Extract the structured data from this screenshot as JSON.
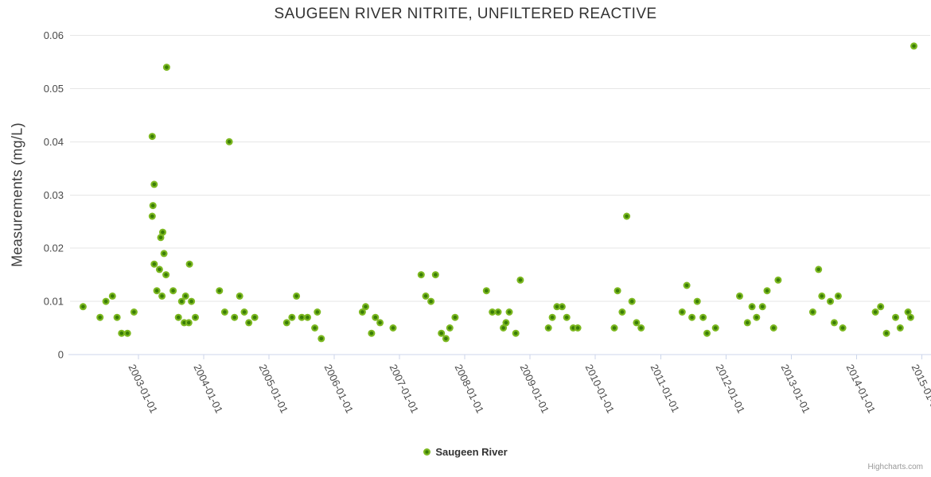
{
  "chart_data": {
    "type": "scatter",
    "title": "SAUGEEN RIVER NITRITE, UNFILTERED REACTIVE",
    "xlabel": "",
    "ylabel": "Measurements (mg/L)",
    "credits": "Highcharts.com",
    "ylim": [
      0,
      0.06
    ],
    "xlim": [
      2001.95,
      2015.13
    ],
    "grid": "horizontal-only",
    "legend_position": "bottom-center",
    "yticks": [
      0,
      0.01,
      0.02,
      0.03,
      0.04,
      0.05,
      0.06
    ],
    "ytick_labels": [
      "0",
      "0.01",
      "0.02",
      "0.03",
      "0.04",
      "0.05",
      "0.06"
    ],
    "xticks": [
      2003,
      2004,
      2005,
      2006,
      2007,
      2008,
      2009,
      2010,
      2011,
      2012,
      2013,
      2014,
      2015
    ],
    "xtick_labels": [
      "2003-01-01",
      "2004-01-01",
      "2005-01-01",
      "2006-01-01",
      "2007-01-01",
      "2008-01-01",
      "2009-01-01",
      "2010-01-01",
      "2011-01-01",
      "2012-01-01",
      "2013-01-01",
      "2014-01-01",
      "2015-01-01"
    ],
    "colors": {
      "marker_outer": "#7cb820",
      "marker_inner": "#3a7d07",
      "gridline": "#e6e6e6",
      "axis_line": "#ccd6eb",
      "tick_label": "#4a4a4a",
      "title": "#333333"
    },
    "series": [
      {
        "name": "Saugeen River",
        "points": [
          [
            2002.15,
            0.009
          ],
          [
            2002.41,
            0.007
          ],
          [
            2002.5,
            0.01
          ],
          [
            2002.6,
            0.011
          ],
          [
            2002.67,
            0.007
          ],
          [
            2002.74,
            0.004
          ],
          [
            2002.83,
            0.004
          ],
          [
            2002.93,
            0.008
          ],
          [
            2003.21,
            0.041
          ],
          [
            2003.21,
            0.026
          ],
          [
            2003.22,
            0.028
          ],
          [
            2003.24,
            0.032
          ],
          [
            2003.24,
            0.017
          ],
          [
            2003.28,
            0.012
          ],
          [
            2003.32,
            0.016
          ],
          [
            2003.34,
            0.022
          ],
          [
            2003.36,
            0.011
          ],
          [
            2003.37,
            0.023
          ],
          [
            2003.39,
            0.019
          ],
          [
            2003.42,
            0.015
          ],
          [
            2003.43,
            0.054
          ],
          [
            2003.53,
            0.012
          ],
          [
            2003.61,
            0.007
          ],
          [
            2003.66,
            0.01
          ],
          [
            2003.7,
            0.006
          ],
          [
            2003.72,
            0.011
          ],
          [
            2003.77,
            0.006
          ],
          [
            2003.78,
            0.017
          ],
          [
            2003.81,
            0.01
          ],
          [
            2003.87,
            0.007
          ],
          [
            2004.24,
            0.012
          ],
          [
            2004.32,
            0.008
          ],
          [
            2004.39,
            0.04
          ],
          [
            2004.47,
            0.007
          ],
          [
            2004.55,
            0.011
          ],
          [
            2004.62,
            0.008
          ],
          [
            2004.69,
            0.006
          ],
          [
            2004.78,
            0.007
          ],
          [
            2005.27,
            0.006
          ],
          [
            2005.35,
            0.007
          ],
          [
            2005.42,
            0.011
          ],
          [
            2005.5,
            0.007
          ],
          [
            2005.59,
            0.007
          ],
          [
            2005.7,
            0.005
          ],
          [
            2005.74,
            0.008
          ],
          [
            2005.8,
            0.003
          ],
          [
            2006.43,
            0.008
          ],
          [
            2006.48,
            0.009
          ],
          [
            2006.57,
            0.004
          ],
          [
            2006.63,
            0.007
          ],
          [
            2006.7,
            0.006
          ],
          [
            2006.9,
            0.005
          ],
          [
            2007.33,
            0.015
          ],
          [
            2007.4,
            0.011
          ],
          [
            2007.48,
            0.01
          ],
          [
            2007.55,
            0.015
          ],
          [
            2007.64,
            0.004
          ],
          [
            2007.71,
            0.003
          ],
          [
            2007.77,
            0.005
          ],
          [
            2007.85,
            0.007
          ],
          [
            2008.33,
            0.012
          ],
          [
            2008.42,
            0.008
          ],
          [
            2008.51,
            0.008
          ],
          [
            2008.59,
            0.005
          ],
          [
            2008.63,
            0.006
          ],
          [
            2008.68,
            0.008
          ],
          [
            2008.78,
            0.004
          ],
          [
            2008.85,
            0.014
          ],
          [
            2009.28,
            0.005
          ],
          [
            2009.34,
            0.007
          ],
          [
            2009.41,
            0.009
          ],
          [
            2009.49,
            0.009
          ],
          [
            2009.56,
            0.007
          ],
          [
            2009.66,
            0.005
          ],
          [
            2009.73,
            0.005
          ],
          [
            2010.29,
            0.005
          ],
          [
            2010.34,
            0.012
          ],
          [
            2010.41,
            0.008
          ],
          [
            2010.48,
            0.026
          ],
          [
            2010.56,
            0.01
          ],
          [
            2010.63,
            0.006
          ],
          [
            2010.7,
            0.005
          ],
          [
            2011.33,
            0.008
          ],
          [
            2011.4,
            0.013
          ],
          [
            2011.48,
            0.007
          ],
          [
            2011.56,
            0.01
          ],
          [
            2011.65,
            0.007
          ],
          [
            2011.71,
            0.004
          ],
          [
            2011.84,
            0.005
          ],
          [
            2012.21,
            0.011
          ],
          [
            2012.33,
            0.006
          ],
          [
            2012.4,
            0.009
          ],
          [
            2012.47,
            0.007
          ],
          [
            2012.56,
            0.009
          ],
          [
            2012.63,
            0.012
          ],
          [
            2012.73,
            0.005
          ],
          [
            2012.8,
            0.014
          ],
          [
            2013.33,
            0.008
          ],
          [
            2013.42,
            0.016
          ],
          [
            2013.47,
            0.011
          ],
          [
            2013.6,
            0.01
          ],
          [
            2013.66,
            0.006
          ],
          [
            2013.72,
            0.011
          ],
          [
            2013.79,
            0.005
          ],
          [
            2014.29,
            0.008
          ],
          [
            2014.37,
            0.009
          ],
          [
            2014.46,
            0.004
          ],
          [
            2014.6,
            0.007
          ],
          [
            2014.67,
            0.005
          ],
          [
            2014.79,
            0.008
          ],
          [
            2014.83,
            0.007
          ],
          [
            2014.88,
            0.058
          ]
        ]
      }
    ]
  }
}
